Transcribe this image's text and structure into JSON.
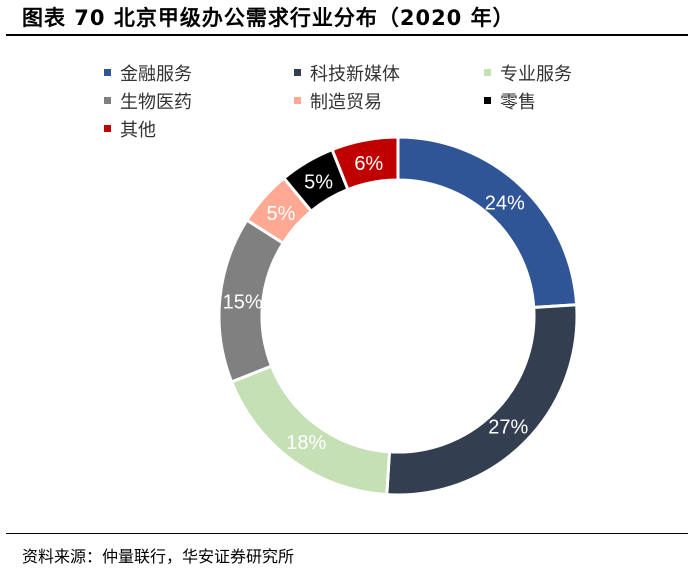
{
  "title": "图表 70 北京甲级办公需求行业分布（2020 年）",
  "source": "资料来源：仲量联行，华安证券研究所",
  "chart_data": {
    "type": "pie",
    "variant": "donut",
    "title": "",
    "legend_position": "top",
    "start": "12 o'clock, clockwise",
    "categories": [
      "金融服务",
      "科技新媒体",
      "专业服务",
      "生物医药",
      "制造贸易",
      "零售",
      "其他"
    ],
    "values": [
      24,
      27,
      18,
      15,
      5,
      5,
      6
    ],
    "labels": [
      "24%",
      "27%",
      "18%",
      "15%",
      "5%",
      "5%",
      "6%"
    ],
    "colors": [
      "#2F5597",
      "#333F50",
      "#C5E0B4",
      "#808080",
      "#FFA995",
      "#000000",
      "#C00000"
    ]
  }
}
